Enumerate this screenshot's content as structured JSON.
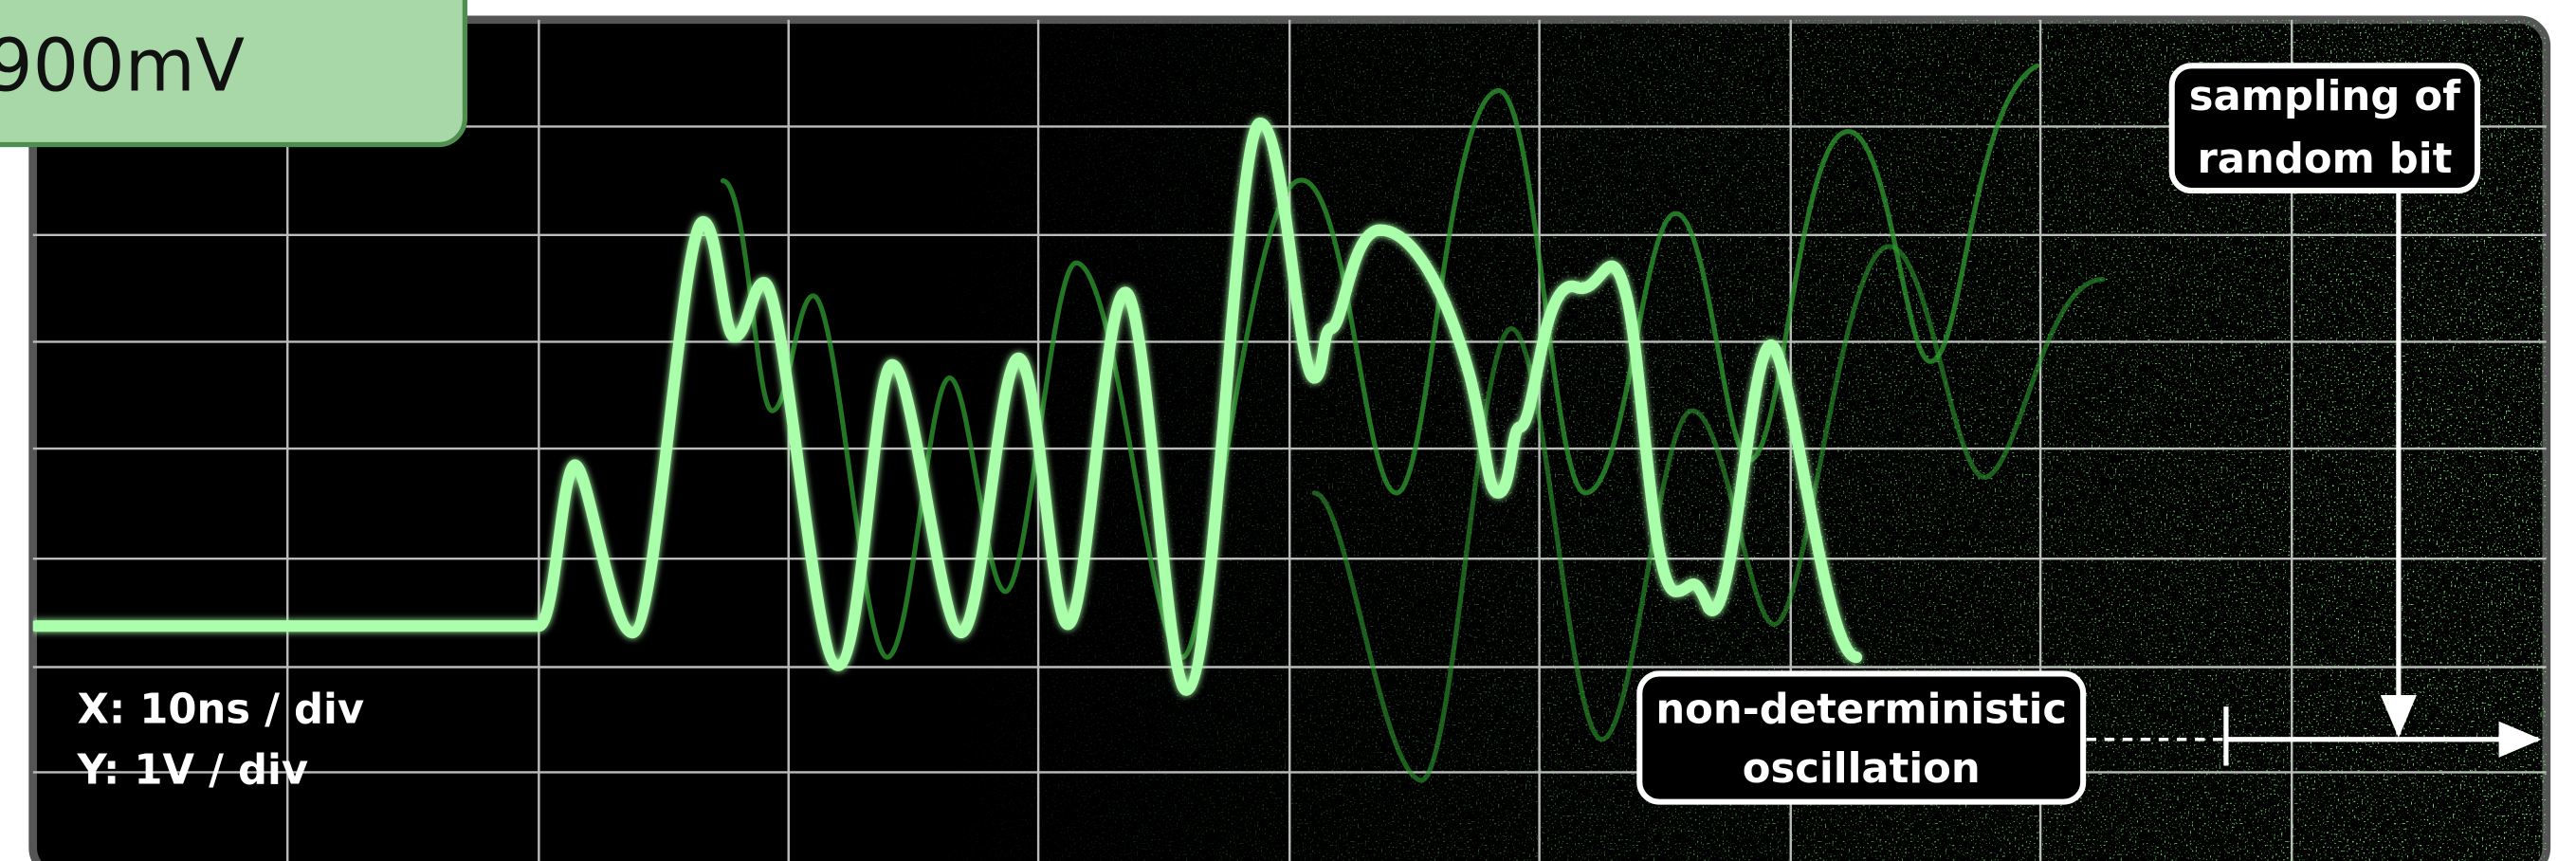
{
  "trigger_label": {
    "level": "900mV"
  },
  "scale_info": {
    "x": "X: 10ns / div",
    "y": "Y: 1V / div"
  },
  "annotations": {
    "sampling": {
      "lines": [
        "sampling of",
        "random bit"
      ]
    },
    "oscillation": {
      "lines": [
        "non-deterministic",
        "oscillation"
      ]
    }
  }
}
